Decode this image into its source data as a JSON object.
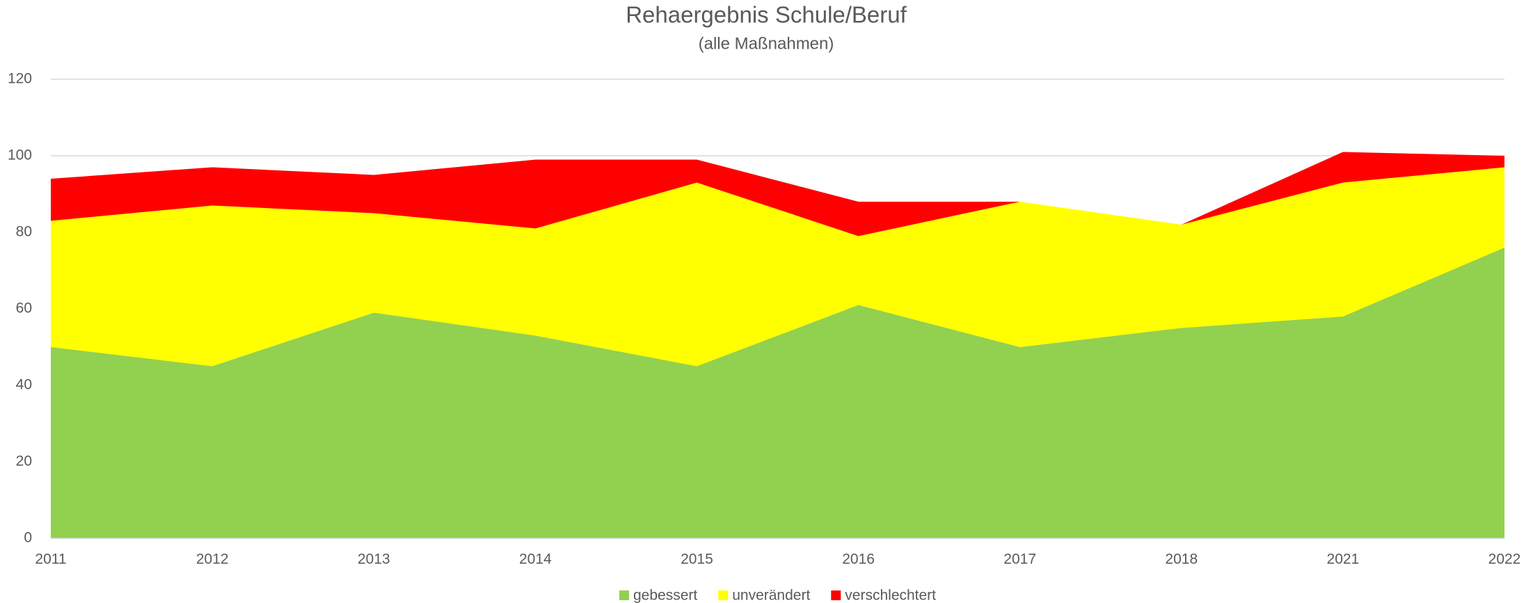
{
  "chart_data": {
    "type": "stacked_area",
    "title": "Rehaergebnis Schule/Beruf",
    "subtitle": "(alle Maßnahmen)",
    "categories": [
      "2011",
      "2012",
      "2013",
      "2014",
      "2015",
      "2016",
      "2017",
      "2018",
      "2021",
      "2022"
    ],
    "series": [
      {
        "name": "gebessert",
        "color": "#92d050",
        "values": [
          50,
          45,
          59,
          53,
          45,
          61,
          50,
          55,
          58,
          76
        ]
      },
      {
        "name": "unverändert",
        "color": "#ffff00",
        "values": [
          33,
          42,
          26,
          28,
          48,
          18,
          38,
          27,
          35,
          21
        ]
      },
      {
        "name": "verschlechtert",
        "color": "#ff0000",
        "values": [
          11,
          10,
          10,
          18,
          6,
          9,
          0,
          0,
          8,
          3
        ]
      }
    ],
    "ylim": [
      0,
      120
    ],
    "yticks": [
      0,
      20,
      40,
      60,
      80,
      100,
      120
    ],
    "grid": true,
    "legend": "bottom"
  }
}
